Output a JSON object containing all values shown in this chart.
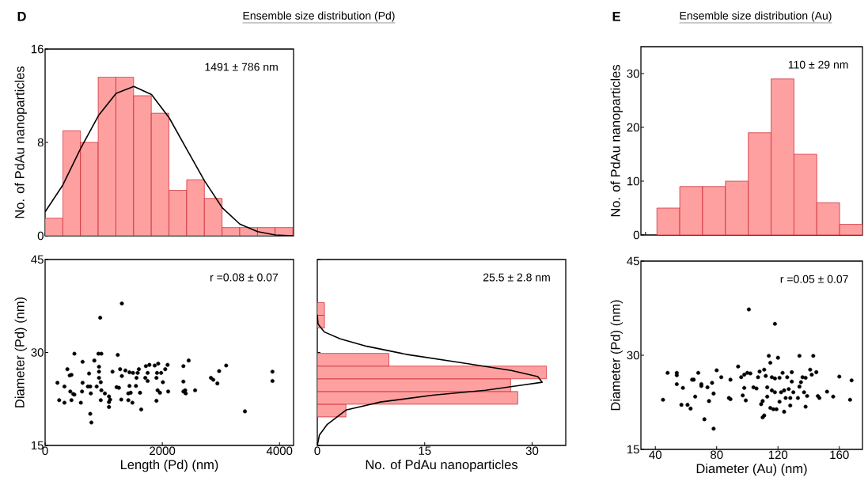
{
  "chart_data": [
    {
      "type": "histogram",
      "title": "Ensemble size distribution (Pd)",
      "annotations": [
        "D",
        "1491 ± 786 nm"
      ],
      "ylabel": "No. of PdAu nanoparticles",
      "xlim": [
        0,
        4240
      ],
      "ylim": [
        0,
        16
      ],
      "xticks": [
        0,
        2000,
        4000
      ],
      "yticks": [
        0,
        8,
        16
      ],
      "tick_labels": "y",
      "series": [
        {
          "type": "histogram",
          "color": "#ffa0a0",
          "bins": [
            0,
            302,
            604,
            906,
            1208,
            1510,
            1812,
            2114,
            2416,
            2718,
            3020,
            3322,
            3624,
            3926,
            4228
          ],
          "values": [
            1.5,
            9,
            8,
            13.6,
            13.6,
            12,
            10.5,
            3.9,
            4.8,
            3.2,
            0.7,
            0.7,
            0.7,
            0.7
          ]
        },
        {
          "type": "line",
          "color": "#000000",
          "x": [
            0,
            297,
            608,
            911,
            1212,
            1514,
            1816,
            2118,
            2419,
            2721,
            3023,
            3324,
            3626,
            3928,
            4230
          ],
          "values": [
            2.05,
            4.3,
            7.5,
            10.3,
            12.2,
            12.8,
            12.1,
            10.1,
            7.4,
            4.7,
            2.4,
            1.0,
            0.35,
            0.07,
            0
          ]
        }
      ]
    },
    {
      "type": "scatter",
      "annotations": [
        "r =0.08 ± 0.07"
      ],
      "xlabel": "Length (Pd) (nm)",
      "ylabel": "Diameter (Pd) (nm)",
      "xlim": [
        0,
        4240
      ],
      "ylim": [
        15,
        45
      ],
      "xticks": [
        0,
        2000,
        4000
      ],
      "yticks": [
        15,
        30,
        45
      ],
      "color": "#000000",
      "marker": "circle",
      "x": [
        210,
        240,
        330,
        330,
        380,
        420,
        450,
        430,
        450,
        480,
        500,
        500,
        610,
        630,
        640,
        640,
        730,
        750,
        770,
        780,
        770,
        790,
        840,
        880,
        910,
        920,
        920,
        920,
        960,
        950,
        940,
        960,
        950,
        1020,
        1090,
        1090,
        1090,
        1110,
        1150,
        1220,
        1240,
        1260,
        1280,
        1310,
        1310,
        1300,
        1370,
        1420,
        1440,
        1440,
        1420,
        1490,
        1500,
        1460,
        1550,
        1580,
        1560,
        1600,
        1620,
        1640,
        1710,
        1720,
        1750,
        1750,
        1780,
        1900,
        1900,
        1870,
        1910,
        1920,
        1930,
        1960,
        1980,
        2010,
        2050,
        2090,
        2100,
        2360,
        2360,
        2360,
        2390,
        2400,
        2450,
        2560,
        2830,
        2870,
        2940,
        2970,
        3090,
        3410,
        3880,
        3880
      ],
      "values": [
        25.1,
        22.3,
        24.5,
        21.9,
        27.3,
        26.3,
        26.4,
        23.7,
        22.3,
        23.3,
        23.2,
        29.8,
        21.9,
        23.7,
        25.1,
        28.5,
        24.5,
        26.6,
        24.5,
        23.4,
        20.1,
        18.7,
        28.7,
        24.5,
        29.8,
        27.7,
        26.9,
        25.9,
        29.8,
        25.2,
        35.6,
        23.9,
        22.3,
        23.4,
        22.9,
        22.0,
        21.2,
        22.4,
        26.9,
        24.4,
        29.6,
        24.3,
        27.3,
        37.9,
        26.2,
        22.4,
        27.1,
        23.4,
        24.6,
        26.8,
        22.3,
        21.9,
        26.7,
        23.5,
        24.6,
        26.7,
        25.9,
        27.3,
        23.5,
        20.8,
        25.9,
        27.8,
        26.7,
        25.4,
        28.0,
        22.2,
        25.9,
        27.9,
        26.7,
        23.9,
        28.2,
        23.5,
        26.7,
        25.2,
        27.3,
        28.0,
        23.7,
        27.8,
        25.3,
        23.7,
        23.9,
        23.4,
        28.7,
        23.9,
        25.9,
        25.6,
        25.0,
        27.0,
        27.9,
        20.5,
        26.9,
        25.4
      ]
    },
    {
      "type": "histogram",
      "orientation": "horizontal",
      "annotations": [
        "25.5 ± 2.8 nm"
      ],
      "xlabel": "No. of PdAu nanoparticles",
      "xlim": [
        0,
        34.7
      ],
      "ylim": [
        15,
        45
      ],
      "xticks": [
        0,
        15,
        30
      ],
      "yticks": [
        15,
        30,
        45
      ],
      "tick_labels": "x",
      "series": [
        {
          "type": "histogram",
          "color": "#ffa0a0",
          "bins": [
            19.6,
            21.65,
            23.7,
            25.75,
            27.8,
            29.85,
            31.9,
            33.95,
            36.0,
            38.05
          ],
          "values": [
            4,
            28,
            27,
            32,
            10,
            0,
            0,
            1,
            1
          ]
        },
        {
          "type": "line",
          "color": "#000000",
          "x": [
            15.0,
            16.7,
            18.4,
            20.7,
            22.0,
            23.1,
            23.9,
            24.8,
            25.2,
            26.1,
            27.1,
            28.4,
            29.7,
            31.0,
            32.2,
            33.3,
            34.6,
            36.1
          ],
          "values": [
            0,
            0.3,
            1.4,
            4.0,
            8.8,
            16.1,
            23.5,
            29.0,
            31.4,
            30.8,
            27.1,
            19.8,
            12.4,
            6.9,
            3.2,
            1.0,
            0.1,
            0
          ]
        }
      ]
    },
    {
      "type": "bar",
      "title": "Ensemble size distribution (Au)",
      "annotations": [
        "E",
        "110 ± 29 nm"
      ],
      "ylabel": "No. of PdAu nanoparticles",
      "ylim": [
        0,
        35
      ],
      "yticks": [
        0,
        10,
        20,
        30
      ],
      "tick_labels": "y",
      "categories": [
        null,
        null,
        null,
        null,
        null,
        null,
        null,
        null,
        null
      ],
      "color": "#ffa0a0",
      "values": [
        5,
        9,
        9,
        10,
        19,
        29,
        15,
        6,
        2
      ]
    },
    {
      "type": "scatter",
      "annotations": [
        "r =0.05 ± 0.07"
      ],
      "xlabel": "Diameter (Au) (nm)",
      "ylabel": "Diameter (Pd) (nm)",
      "xlim": [
        30.6,
        175.1
      ],
      "ylim": [
        15,
        45
      ],
      "xticks": [
        40,
        80,
        120,
        160
      ],
      "yticks": [
        15,
        30,
        45
      ],
      "color": "#000000",
      "marker": "circle",
      "x": [
        45,
        48,
        54,
        54,
        54,
        58,
        57,
        61,
        63,
        64,
        65,
        66,
        68,
        70,
        70,
        72,
        75,
        74,
        77,
        78,
        78,
        80,
        83,
        88,
        89,
        89,
        94,
        96,
        97,
        98,
        98,
        99,
        100,
        101,
        102,
        104,
        106,
        107,
        108,
        109,
        110,
        110,
        111,
        111,
        112,
        113,
        113,
        114,
        115,
        115,
        116,
        116,
        117,
        118,
        118,
        118,
        119,
        120,
        121,
        121,
        122,
        123,
        124,
        124,
        125,
        126,
        127,
        128,
        128,
        129,
        129,
        130,
        133,
        134,
        134,
        135,
        136,
        137,
        138,
        138,
        139,
        141,
        142,
        143,
        145,
        146,
        147,
        152,
        156,
        160,
        167,
        168
      ],
      "values": [
        22.9,
        27.2,
        27.2,
        26.8,
        25.4,
        24.8,
        22.1,
        22.1,
        21.5,
        26.1,
        26.1,
        23.4,
        27.2,
        25.4,
        25.1,
        19.8,
        22.7,
        24.9,
        25.6,
        18.3,
        23.9,
        27.6,
        26.5,
        23.2,
        23.0,
        26.1,
        28.2,
        26.5,
        23.6,
        24.8,
        26.9,
        22.8,
        27.2,
        37.3,
        27.1,
        24.9,
        24.7,
        26.5,
        27.4,
        22.2,
        22.7,
        20.1,
        20.4,
        27.7,
        26.7,
        24.9,
        23.4,
        29.9,
        28.8,
        21.6,
        26.5,
        24.4,
        21.4,
        35.0,
        26.3,
        24.1,
        21.4,
        29.6,
        26.4,
        22.6,
        24.1,
        27.2,
        21.0,
        24.4,
        23.2,
        26.5,
        24.6,
        23.2,
        22.0,
        27.3,
        25.8,
        24.1,
        23.2,
        29.9,
        25.0,
        25.7,
        26.5,
        24.1,
        26.4,
        21.8,
        23.5,
        27.7,
        26.9,
        29.9,
        27.3,
        23.5,
        23.2,
        24.2,
        23.4,
        26.6,
        22.9,
        26.0
      ]
    }
  ]
}
